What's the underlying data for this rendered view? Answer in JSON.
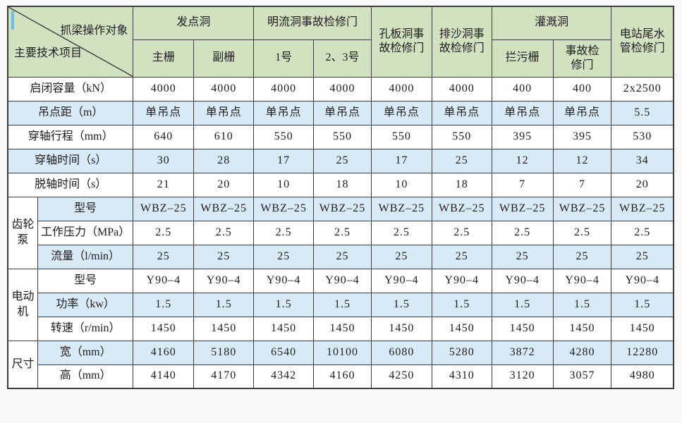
{
  "colors": {
    "header_green": "#d2e2c1",
    "row_blue": "#d8eaf6",
    "row_white": "#fdfdfc",
    "border": "#3c3c3c",
    "cursor_blue": "#6cc1e4"
  },
  "table": {
    "corner": {
      "top": "抓梁操作对象",
      "bottom": "主要技术项目"
    },
    "col_groups": [
      {
        "label": "发点洞",
        "children": [
          "主栅",
          "副栅"
        ]
      },
      {
        "label": "明流洞事故检修门",
        "children": [
          "1号",
          "2、3号"
        ]
      },
      {
        "label": "孔板洞事故检修门",
        "children": null
      },
      {
        "label": "排沙洞事故检修门",
        "children": null
      },
      {
        "label": "灌溉洞",
        "children": [
          "拦污栅",
          "事故检修门"
        ]
      },
      {
        "label": "电站尾水管检修门",
        "children": null
      }
    ],
    "rows": [
      {
        "group": null,
        "label": "启闭容量（kN）",
        "shade": false,
        "values": [
          "4000",
          "4000",
          "4000",
          "4000",
          "4000",
          "4000",
          "400",
          "400",
          "2x2500"
        ]
      },
      {
        "group": null,
        "label": "吊点距（m）",
        "shade": true,
        "values": [
          "单吊点",
          "单吊点",
          "单吊点",
          "单吊点",
          "单吊点",
          "单吊点",
          "单吊点",
          "单吊点",
          "5.5"
        ]
      },
      {
        "group": null,
        "label": "穿轴行程（mm）",
        "shade": false,
        "values": [
          "640",
          "610",
          "550",
          "550",
          "550",
          "550",
          "395",
          "395",
          "530"
        ]
      },
      {
        "group": null,
        "label": "穿轴时间（s）",
        "shade": true,
        "values": [
          "30",
          "28",
          "17",
          "25",
          "17",
          "25",
          "12",
          "12",
          "34"
        ]
      },
      {
        "group": null,
        "label": "脱轴时间（s）",
        "shade": false,
        "values": [
          "21",
          "20",
          "10",
          "18",
          "10",
          "18",
          "7",
          "7",
          "20"
        ]
      },
      {
        "group": {
          "label": "齿轮泵",
          "span": 3
        },
        "label": "型号",
        "shade": true,
        "values": [
          "WBZ–25",
          "WBZ–25",
          "WBZ–25",
          "WBZ–25",
          "WBZ–25",
          "WBZ–25",
          "WBZ–25",
          "WBZ–25",
          "WBZ–25"
        ]
      },
      {
        "group": null,
        "label": "工作压力（MPa）",
        "shade": false,
        "values": [
          "2.5",
          "2.5",
          "2.5",
          "2.5",
          "2.5",
          "2.5",
          "2.5",
          "2.5",
          "2.5"
        ]
      },
      {
        "group": null,
        "label": "流量（l/min）",
        "shade": true,
        "values": [
          "25",
          "25",
          "25",
          "25",
          "25",
          "25",
          "25",
          "25",
          "25"
        ]
      },
      {
        "group": {
          "label": "电动机",
          "span": 3
        },
        "label": "型号",
        "shade": false,
        "values": [
          "Y90–4",
          "Y90–4",
          "Y90–4",
          "Y90–4",
          "Y90–4",
          "Y90–4",
          "Y90–4",
          "Y90–4",
          "Y90–4"
        ]
      },
      {
        "group": null,
        "label": "功率（kw）",
        "shade": true,
        "values": [
          "1.5",
          "1.5",
          "1.5",
          "1.5",
          "1.5",
          "1.5",
          "1.5",
          "1.5",
          "1.5"
        ]
      },
      {
        "group": null,
        "label": "转速（r/min）",
        "shade": false,
        "values": [
          "1450",
          "1450",
          "1450",
          "1450",
          "1450",
          "1450",
          "1450",
          "1450",
          "1450"
        ]
      },
      {
        "group": {
          "label": "尺寸",
          "span": 2
        },
        "label": "宽（mm）",
        "shade": true,
        "values": [
          "4160",
          "5180",
          "6540",
          "10100",
          "6080",
          "5280",
          "3872",
          "4280",
          "12280"
        ]
      },
      {
        "group": null,
        "label": "高（mm）",
        "shade": false,
        "values": [
          "4140",
          "4170",
          "4342",
          "4160",
          "4250",
          "4310",
          "3120",
          "3057",
          "4980"
        ]
      }
    ]
  }
}
